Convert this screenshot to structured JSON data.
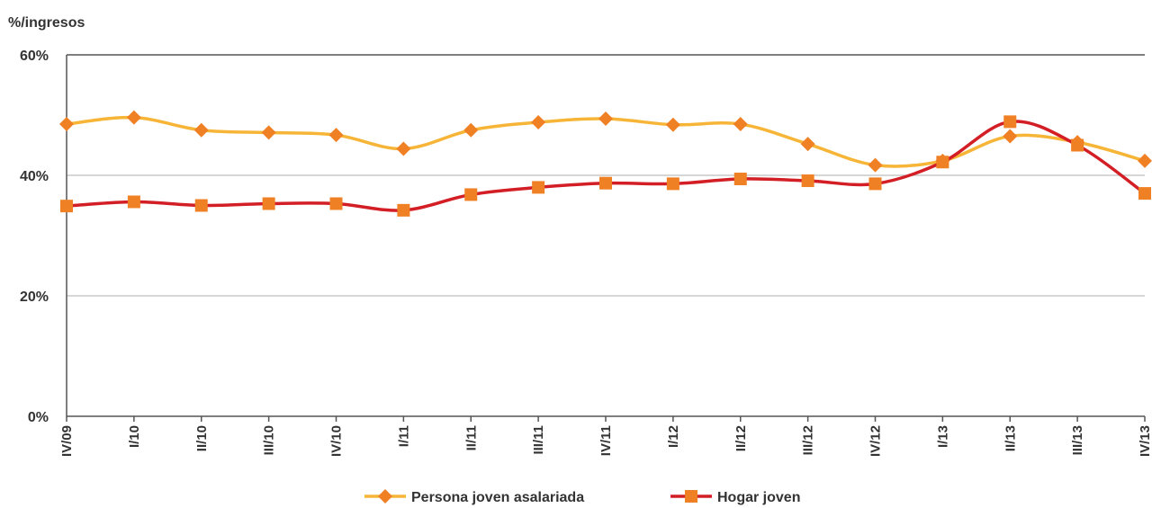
{
  "chart_data": {
    "type": "line",
    "ylabel": "%/ingresos",
    "ylim": [
      0,
      60
    ],
    "yticks": [
      0,
      20,
      40,
      60
    ],
    "ytick_labels": [
      "0%",
      "20%",
      "40%",
      "60%"
    ],
    "grid": true,
    "legend_position": "bottom-center",
    "categories": [
      "IV/09",
      "I/10",
      "II/10",
      "III/10",
      "IV/10",
      "I/11",
      "II/11",
      "III/11",
      "IV/11",
      "I/12",
      "II/12",
      "III/12",
      "IV/12",
      "I/13",
      "II/13",
      "III/13",
      "IV/13"
    ],
    "series": [
      {
        "name": "Persona joven asalariada",
        "color": "#F7B538",
        "marker_color": "#F08024",
        "marker": "diamond",
        "values": [
          48.5,
          49.6,
          47.5,
          47.1,
          46.7,
          44.4,
          47.5,
          48.8,
          49.4,
          48.4,
          48.5,
          45.2,
          41.7,
          42.4,
          46.5,
          45.5,
          42.4
        ]
      },
      {
        "name": "Hogar joven",
        "color": "#D21E24",
        "marker_color": "#F08024",
        "marker": "square",
        "values": [
          34.9,
          35.6,
          35.0,
          35.3,
          35.3,
          34.2,
          36.8,
          38.0,
          38.7,
          38.6,
          39.4,
          39.1,
          38.6,
          42.2,
          48.9,
          45.0,
          37.0
        ]
      }
    ]
  }
}
